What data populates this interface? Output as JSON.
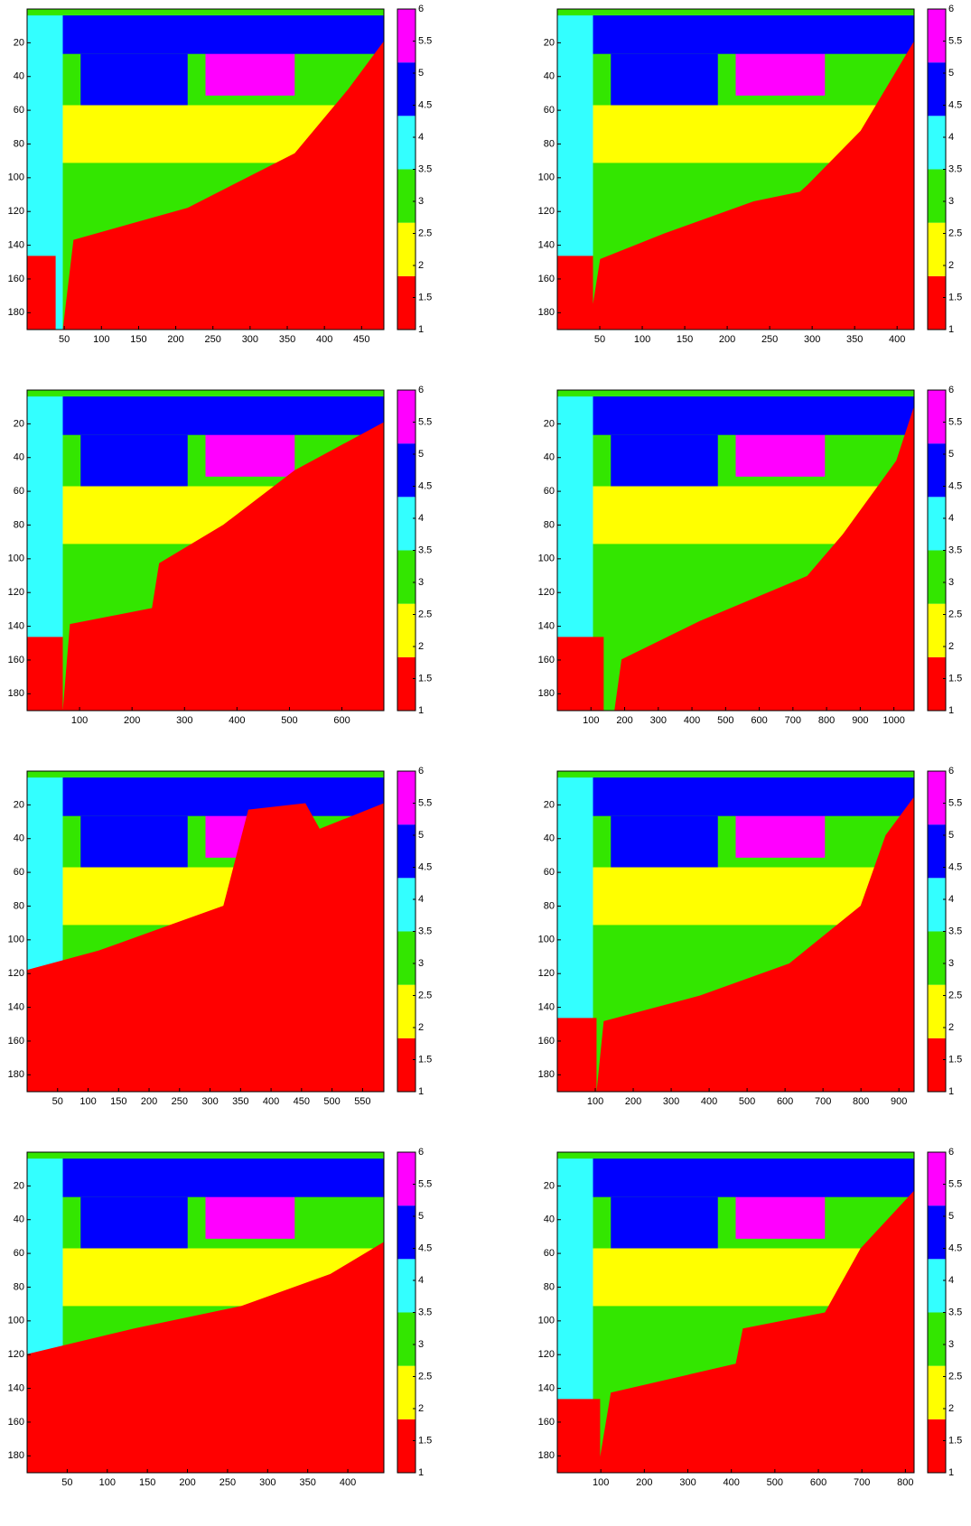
{
  "chart_data": [
    {
      "type": "heatmap",
      "xlim": [
        0,
        480
      ],
      "xticks": [
        50,
        100,
        150,
        200,
        250,
        300,
        350,
        400,
        450
      ],
      "ylim": [
        0,
        190
      ],
      "y_reversed": true,
      "yticks": [
        20,
        40,
        60,
        80,
        100,
        120,
        140,
        160,
        180
      ],
      "clim": [
        1,
        6
      ],
      "cticks": [
        1,
        1.5,
        2,
        2.5,
        3,
        3.5,
        4,
        4.5,
        5,
        5.5,
        6
      ],
      "colormap": [
        "#ff0000",
        "#ffff00",
        "#33e600",
        "#33ffff",
        "#0000ff",
        "#ff00ff"
      ]
    },
    {
      "type": "heatmap",
      "xlim": [
        0,
        420
      ],
      "xticks": [
        50,
        100,
        150,
        200,
        250,
        300,
        350,
        400
      ],
      "ylim": [
        0,
        190
      ],
      "y_reversed": true,
      "yticks": [
        20,
        40,
        60,
        80,
        100,
        120,
        140,
        160,
        180
      ],
      "clim": [
        1,
        6
      ],
      "cticks": [
        1,
        1.5,
        2,
        2.5,
        3,
        3.5,
        4,
        4.5,
        5,
        5.5,
        6
      ],
      "colormap": [
        "#ff0000",
        "#ffff00",
        "#33e600",
        "#33ffff",
        "#0000ff",
        "#ff00ff"
      ]
    },
    {
      "type": "heatmap",
      "xlim": [
        0,
        680
      ],
      "xticks": [
        100,
        200,
        300,
        400,
        500,
        600
      ],
      "ylim": [
        0,
        190
      ],
      "y_reversed": true,
      "yticks": [
        20,
        40,
        60,
        80,
        100,
        120,
        140,
        160,
        180
      ],
      "clim": [
        1,
        6
      ],
      "cticks": [
        1,
        1.5,
        2,
        2.5,
        3,
        3.5,
        4,
        4.5,
        5,
        5.5,
        6
      ],
      "colormap": [
        "#ff0000",
        "#ffff00",
        "#33e600",
        "#33ffff",
        "#0000ff",
        "#ff00ff"
      ]
    },
    {
      "type": "heatmap",
      "xlim": [
        0,
        1060
      ],
      "xticks": [
        100,
        200,
        300,
        400,
        500,
        600,
        700,
        800,
        900,
        1000
      ],
      "ylim": [
        0,
        190
      ],
      "y_reversed": true,
      "yticks": [
        20,
        40,
        60,
        80,
        100,
        120,
        140,
        160,
        180
      ],
      "clim": [
        1,
        6
      ],
      "cticks": [
        1,
        1.5,
        2,
        2.5,
        3,
        3.5,
        4,
        4.5,
        5,
        5.5,
        6
      ],
      "colormap": [
        "#ff0000",
        "#ffff00",
        "#33e600",
        "#33ffff",
        "#0000ff",
        "#ff00ff"
      ]
    },
    {
      "type": "heatmap",
      "xlim": [
        0,
        585
      ],
      "xticks": [
        50,
        100,
        150,
        200,
        250,
        300,
        350,
        400,
        450,
        500,
        550
      ],
      "ylim": [
        0,
        190
      ],
      "y_reversed": true,
      "yticks": [
        20,
        40,
        60,
        80,
        100,
        120,
        140,
        160,
        180
      ],
      "clim": [
        1,
        6
      ],
      "cticks": [
        1,
        1.5,
        2,
        2.5,
        3,
        3.5,
        4,
        4.5,
        5,
        5.5,
        6
      ],
      "colormap": [
        "#ff0000",
        "#ffff00",
        "#33e600",
        "#33ffff",
        "#0000ff",
        "#ff00ff"
      ]
    },
    {
      "type": "heatmap",
      "xlim": [
        0,
        940
      ],
      "xticks": [
        100,
        200,
        300,
        400,
        500,
        600,
        700,
        800,
        900
      ],
      "ylim": [
        0,
        190
      ],
      "y_reversed": true,
      "yticks": [
        20,
        40,
        60,
        80,
        100,
        120,
        140,
        160,
        180
      ],
      "clim": [
        1,
        6
      ],
      "cticks": [
        1,
        1.5,
        2,
        2.5,
        3,
        3.5,
        4,
        4.5,
        5,
        5.5,
        6
      ],
      "colormap": [
        "#ff0000",
        "#ffff00",
        "#33e600",
        "#33ffff",
        "#0000ff",
        "#ff00ff"
      ]
    },
    {
      "type": "heatmap",
      "xlim": [
        0,
        445
      ],
      "xticks": [
        50,
        100,
        150,
        200,
        250,
        300,
        350,
        400
      ],
      "ylim": [
        0,
        190
      ],
      "y_reversed": true,
      "yticks": [
        20,
        40,
        60,
        80,
        100,
        120,
        140,
        160,
        180
      ],
      "clim": [
        1,
        6
      ],
      "cticks": [
        1,
        1.5,
        2,
        2.5,
        3,
        3.5,
        4,
        4.5,
        5,
        5.5,
        6
      ],
      "colormap": [
        "#ff0000",
        "#ffff00",
        "#33e600",
        "#33ffff",
        "#0000ff",
        "#ff00ff"
      ]
    },
    {
      "type": "heatmap",
      "xlim": [
        0,
        820
      ],
      "xticks": [
        100,
        200,
        300,
        400,
        500,
        600,
        700,
        800
      ],
      "ylim": [
        0,
        190
      ],
      "y_reversed": true,
      "yticks": [
        20,
        40,
        60,
        80,
        100,
        120,
        140,
        160,
        180
      ],
      "clim": [
        1,
        6
      ],
      "cticks": [
        1,
        1.5,
        2,
        2.5,
        3,
        3.5,
        4,
        4.5,
        5,
        5.5,
        6
      ],
      "colormap": [
        "#ff0000",
        "#ffff00",
        "#33e600",
        "#33ffff",
        "#0000ff",
        "#ff00ff"
      ]
    }
  ]
}
